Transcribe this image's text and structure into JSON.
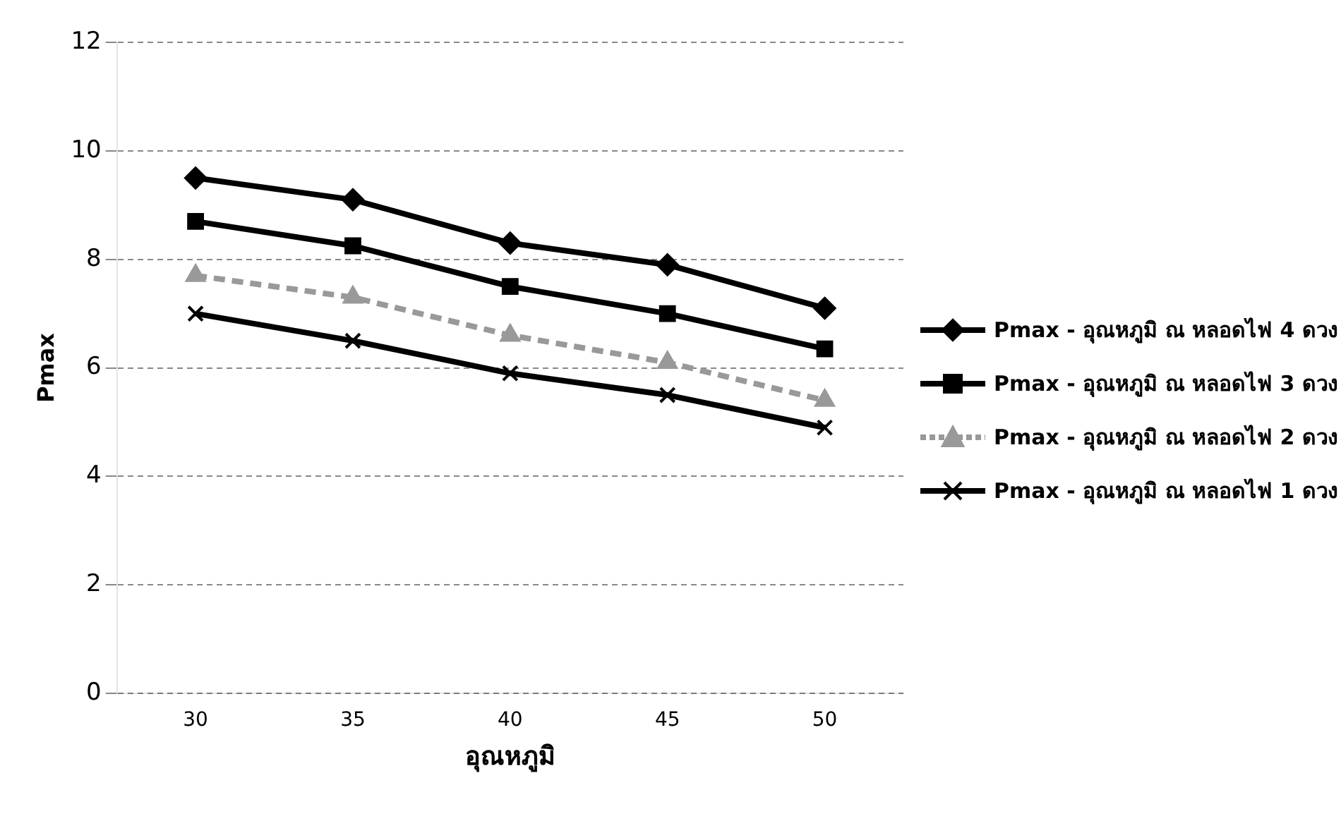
{
  "chart_data": {
    "type": "line",
    "xlabel": "อุณหภูมิ",
    "ylabel": "Pmax",
    "categories": [
      "30",
      "35",
      "40",
      "45",
      "50"
    ],
    "series": [
      {
        "name": "Pmax - อุณหภูมิ ณ หลอดไฟ 4 ดวง",
        "color": "#000000",
        "marker": "diamond",
        "values": [
          9.5,
          9.1,
          8.3,
          7.9,
          7.1
        ]
      },
      {
        "name": "Pmax - อุณหภูมิ ณ หลอดไฟ 3 ดวง",
        "color": "#000000",
        "marker": "square",
        "values": [
          8.7,
          8.25,
          7.5,
          7.0,
          6.35
        ]
      },
      {
        "name": "Pmax - อุณหภูมิ ณ หลอดไฟ 2 ดวง",
        "color": "#999999",
        "marker": "triangle",
        "line_style": "dashed",
        "values": [
          7.7,
          7.3,
          6.6,
          6.1,
          5.4
        ]
      },
      {
        "name": "Pmax - อุณหภูมิ ณ หลอดไฟ 1 ดวง",
        "color": "#000000",
        "marker": "cross",
        "values": [
          7.0,
          6.5,
          5.9,
          5.5,
          4.9
        ]
      }
    ],
    "ylim": [
      0,
      12
    ],
    "yticks": [
      0,
      2,
      4,
      6,
      8,
      10,
      12
    ],
    "grid": "y",
    "legend": "right"
  }
}
